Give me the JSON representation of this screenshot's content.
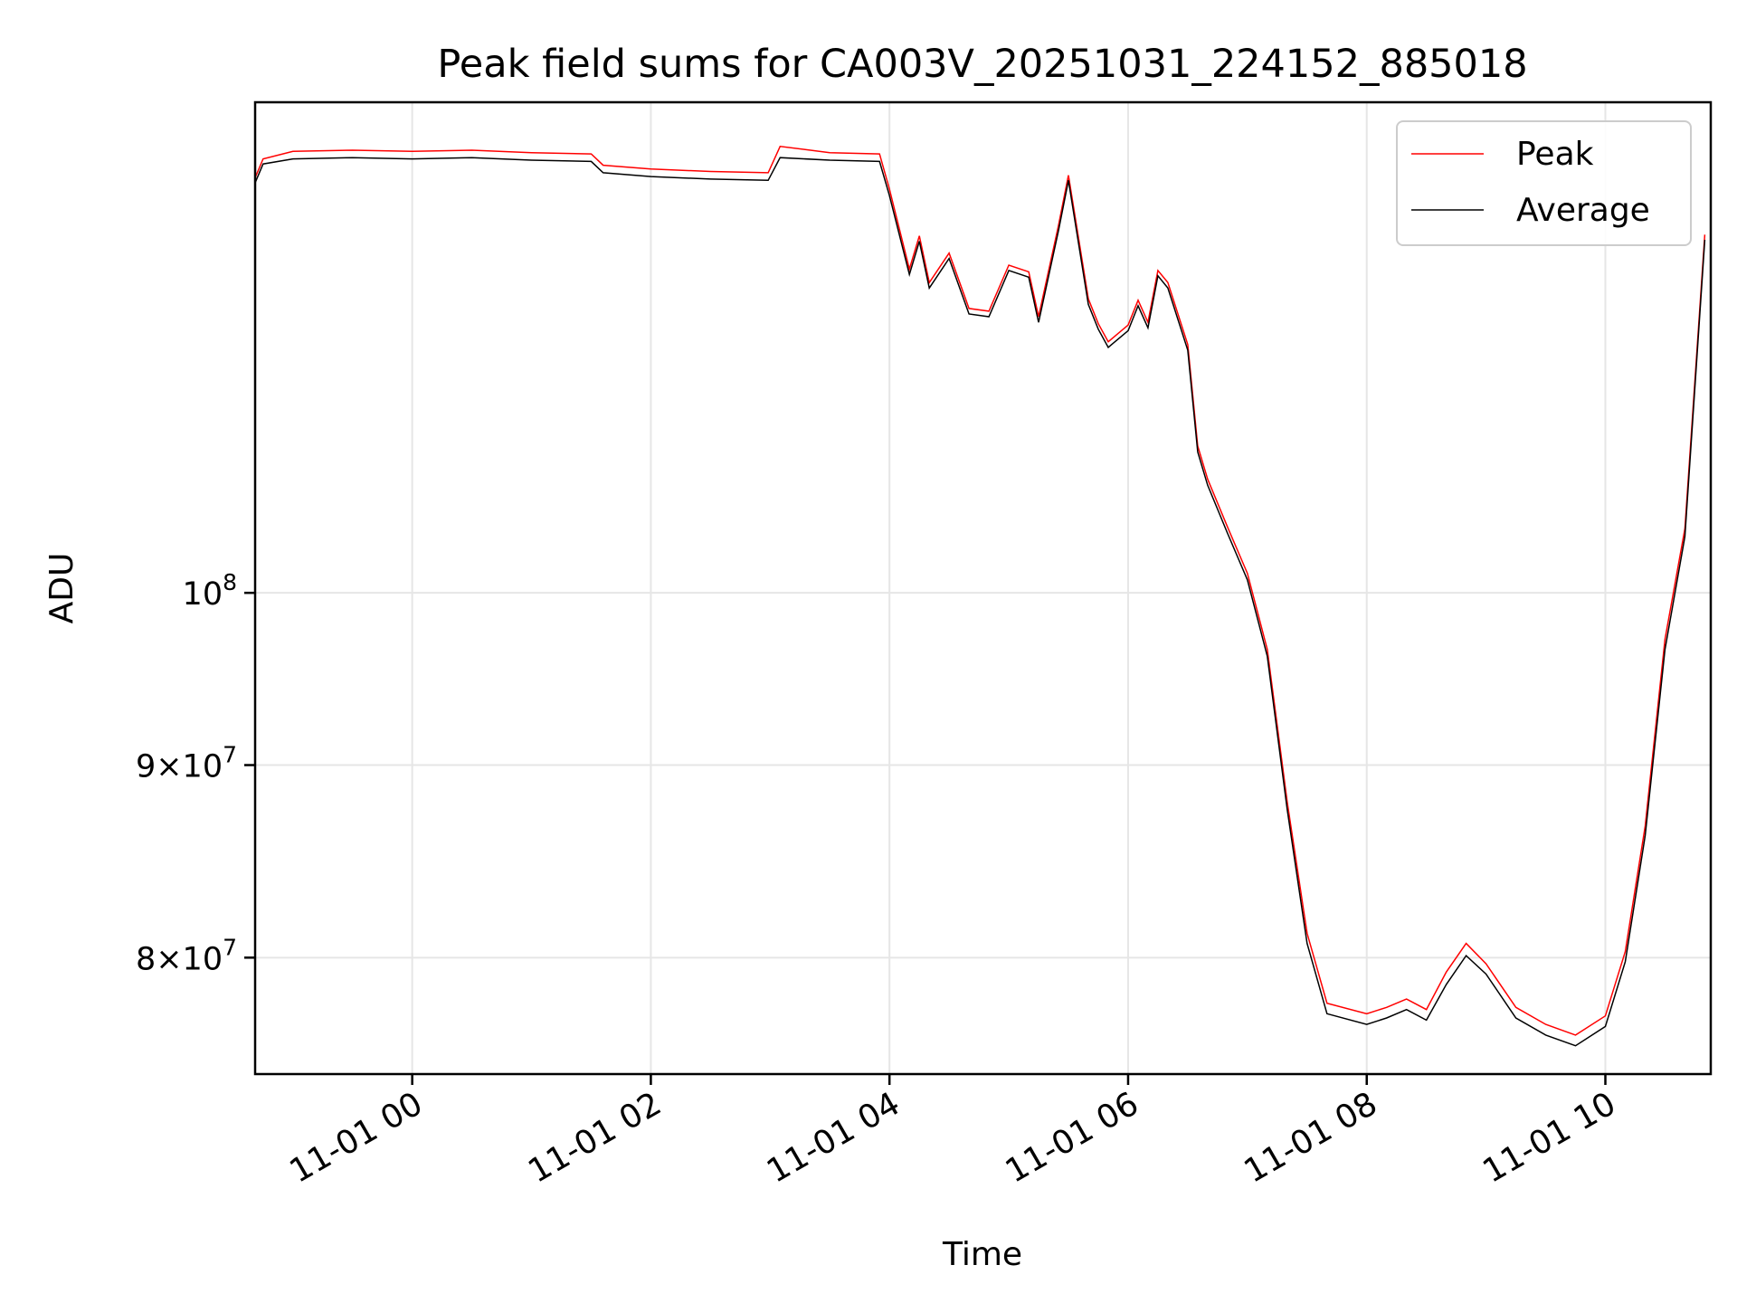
{
  "chart_data": {
    "type": "line",
    "title": "Peak field sums for CA003V_20251031_224152_885018",
    "xlabel": "Time",
    "ylabel": "ADU",
    "yscale": "log",
    "xlim": [
      "2025-10-31T22:41",
      "2025-11-01T10:53"
    ],
    "ylim": [
      74500000,
      135000000
    ],
    "grid": true,
    "legend": "top-right",
    "x_ticks": [
      {
        "label": "11-01 00",
        "value": "2025-11-01T00:00"
      },
      {
        "label": "11-01 02",
        "value": "2025-11-01T02:00"
      },
      {
        "label": "11-01 04",
        "value": "2025-11-01T04:00"
      },
      {
        "label": "11-01 06",
        "value": "2025-11-01T06:00"
      },
      {
        "label": "11-01 08",
        "value": "2025-11-01T08:00"
      },
      {
        "label": "11-01 10",
        "value": "2025-11-01T10:00"
      }
    ],
    "y_ticks": [
      {
        "base": "10",
        "exp": "8",
        "value": 100000000
      },
      {
        "mant": "9",
        "base": "10",
        "exp": "7",
        "value": 90000000
      },
      {
        "mant": "8",
        "base": "10",
        "exp": "7",
        "value": 80000000
      }
    ],
    "series": [
      {
        "name": "Peak",
        "color": "#ff0000"
      },
      {
        "name": "Average",
        "color": "#000000"
      }
    ],
    "x": [
      "2025-10-31T22:41",
      "2025-10-31T22:45",
      "2025-10-31T23:00",
      "2025-10-31T23:30",
      "2025-11-01T00:00",
      "2025-11-01T00:30",
      "2025-11-01T01:00",
      "2025-11-01T01:30",
      "2025-11-01T01:36",
      "2025-11-01T02:00",
      "2025-11-01T02:30",
      "2025-11-01T02:59",
      "2025-11-01T03:05",
      "2025-11-01T03:30",
      "2025-11-01T03:55",
      "2025-11-01T04:00",
      "2025-11-01T04:10",
      "2025-11-01T04:15",
      "2025-11-01T04:20",
      "2025-11-01T04:30",
      "2025-11-01T04:40",
      "2025-11-01T04:50",
      "2025-11-01T05:00",
      "2025-11-01T05:10",
      "2025-11-01T05:15",
      "2025-11-01T05:25",
      "2025-11-01T05:30",
      "2025-11-01T05:40",
      "2025-11-01T05:45",
      "2025-11-01T05:50",
      "2025-11-01T06:00",
      "2025-11-01T06:05",
      "2025-11-01T06:10",
      "2025-11-01T06:15",
      "2025-11-01T06:20",
      "2025-11-01T06:30",
      "2025-11-01T06:35",
      "2025-11-01T06:40",
      "2025-11-01T06:50",
      "2025-11-01T07:00",
      "2025-11-01T07:10",
      "2025-11-01T07:20",
      "2025-11-01T07:30",
      "2025-11-01T07:40",
      "2025-11-01T08:00",
      "2025-11-01T08:10",
      "2025-11-01T08:20",
      "2025-11-01T08:30",
      "2025-11-01T08:40",
      "2025-11-01T08:50",
      "2025-11-01T09:00",
      "2025-11-01T09:15",
      "2025-11-01T09:30",
      "2025-11-01T09:45",
      "2025-11-01T10:00",
      "2025-11-01T10:10",
      "2025-11-01T10:20",
      "2025-11-01T10:30",
      "2025-11-01T10:40",
      "2025-11-01T10:50"
    ],
    "average": [
      128500000,
      130000000,
      130400000,
      130500000,
      130400000,
      130500000,
      130300000,
      130200000,
      129300000,
      129000000,
      128800000,
      128700000,
      130500000,
      130300000,
      130200000,
      127500000,
      121500000,
      124000000,
      120500000,
      122700000,
      118600000,
      118400000,
      121800000,
      121300000,
      118000000,
      124800000,
      128700000,
      119300000,
      117500000,
      116200000,
      117400000,
      119200000,
      117600000,
      121400000,
      120500000,
      116000000,
      109000000,
      106800000,
      103700000,
      100800000,
      96200000,
      87600000,
      80700000,
      77300000,
      76800000,
      77100000,
      77500000,
      77000000,
      78700000,
      80100000,
      79200000,
      77100000,
      76300000,
      75800000,
      76700000,
      79800000,
      86200000,
      96600000,
      103500000,
      124100000
    ],
    "peak": [
      128900000,
      130400000,
      131000000,
      131100000,
      131000000,
      131100000,
      130900000,
      130800000,
      129900000,
      129600000,
      129400000,
      129300000,
      131400000,
      130900000,
      130800000,
      128000000,
      121900000,
      124400000,
      120900000,
      123100000,
      119000000,
      118800000,
      122200000,
      121700000,
      118400000,
      125200000,
      129100000,
      119700000,
      117900000,
      116600000,
      117800000,
      119600000,
      118000000,
      121800000,
      120900000,
      116400000,
      109400000,
      107200000,
      104100000,
      101200000,
      96600000,
      88000000,
      81200000,
      77800000,
      77300000,
      77600000,
      78000000,
      77500000,
      79300000,
      80700000,
      79700000,
      77600000,
      76800000,
      76300000,
      77200000,
      80300000,
      86700000,
      97200000,
      104000000,
      124500000
    ]
  }
}
